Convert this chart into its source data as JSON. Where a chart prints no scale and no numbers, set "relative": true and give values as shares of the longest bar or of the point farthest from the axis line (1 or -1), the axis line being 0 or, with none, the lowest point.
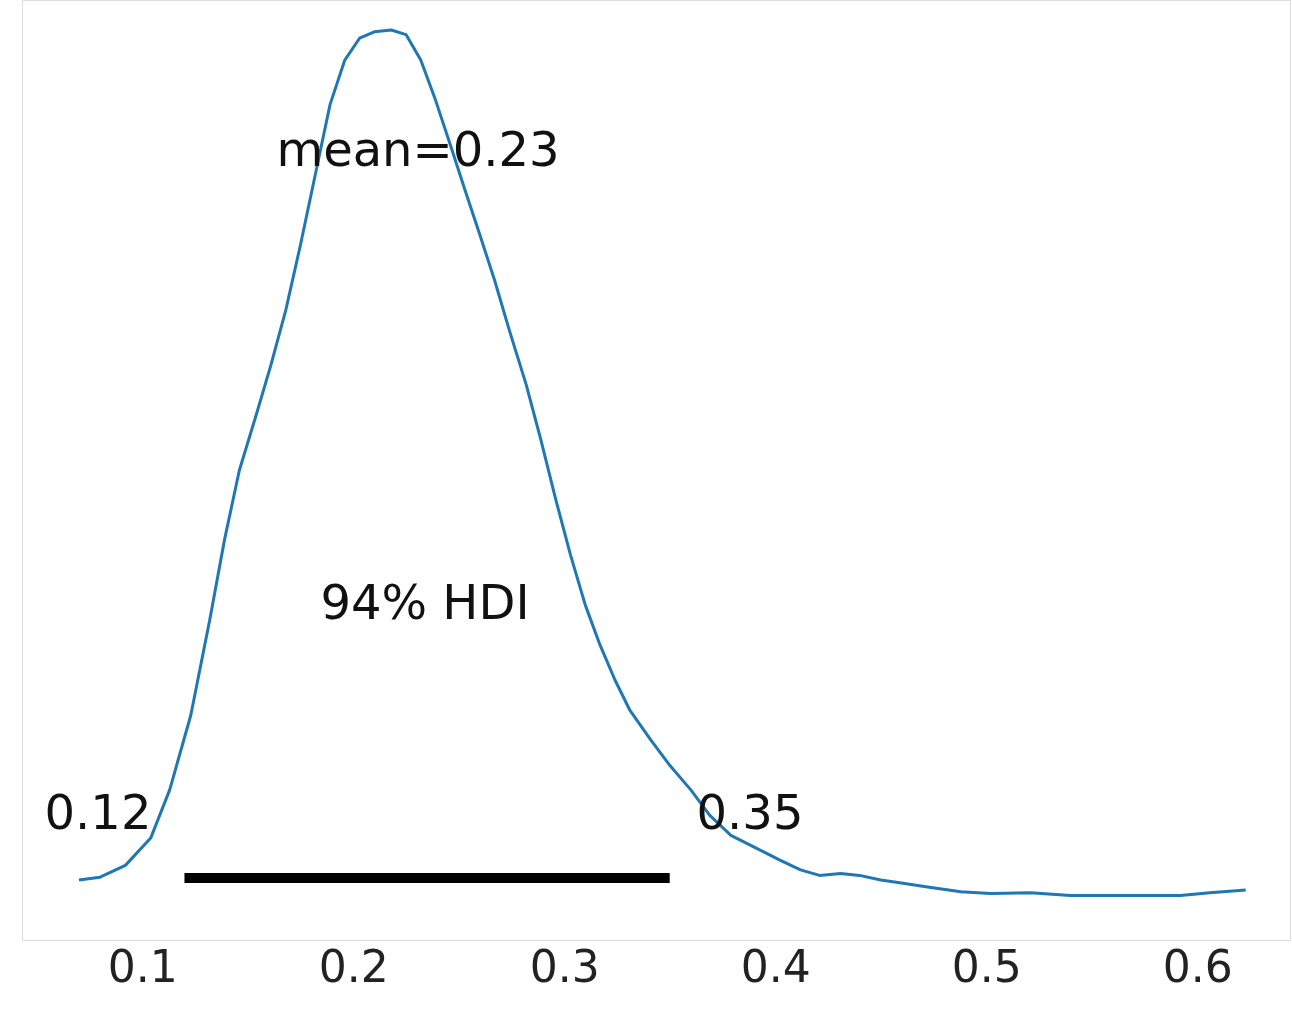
{
  "chart_data": {
    "type": "line",
    "relative": true,
    "grid": false,
    "xlim": [
      0.043,
      0.644
    ],
    "xticks": [
      0.1,
      0.2,
      0.3,
      0.4,
      0.5,
      0.6
    ],
    "series": [
      {
        "color": "#1f77b4",
        "x": [
          0.07,
          0.08,
          0.092,
          0.104,
          0.113,
          0.123,
          0.132,
          0.139,
          0.146,
          0.154,
          0.161,
          0.168,
          0.175,
          0.182,
          0.189,
          0.196,
          0.203,
          0.21,
          0.218,
          0.225,
          0.232,
          0.239,
          0.246,
          0.253,
          0.26,
          0.267,
          0.274,
          0.282,
          0.289,
          0.296,
          0.303,
          0.31,
          0.317,
          0.324,
          0.331,
          0.341,
          0.35,
          0.36,
          0.369,
          0.379,
          0.391,
          0.402,
          0.412,
          0.421,
          0.431,
          0.44,
          0.45,
          0.459,
          0.473,
          0.488,
          0.502,
          0.521,
          0.54,
          0.559,
          0.578,
          0.592,
          0.606,
          0.623
        ],
        "values": [
          0.066,
          0.069,
          0.082,
          0.112,
          0.165,
          0.247,
          0.352,
          0.44,
          0.516,
          0.577,
          0.632,
          0.692,
          0.764,
          0.841,
          0.918,
          0.967,
          0.991,
          0.998,
          1.0,
          0.995,
          0.967,
          0.923,
          0.874,
          0.824,
          0.775,
          0.725,
          0.67,
          0.61,
          0.549,
          0.484,
          0.423,
          0.368,
          0.324,
          0.286,
          0.253,
          0.22,
          0.192,
          0.165,
          0.137,
          0.115,
          0.101,
          0.088,
          0.077,
          0.071,
          0.073,
          0.071,
          0.066,
          0.063,
          0.058,
          0.053,
          0.051,
          0.052,
          0.049,
          0.049,
          0.049,
          0.049,
          0.052,
          0.055
        ]
      },
      {
        "color": "#000000",
        "x": [
          0.12,
          0.35
        ],
        "values": [
          0.068,
          0.068
        ]
      }
    ],
    "annotations": [
      "mean=0.23",
      "94% HDI",
      "0.12",
      "0.35"
    ]
  }
}
